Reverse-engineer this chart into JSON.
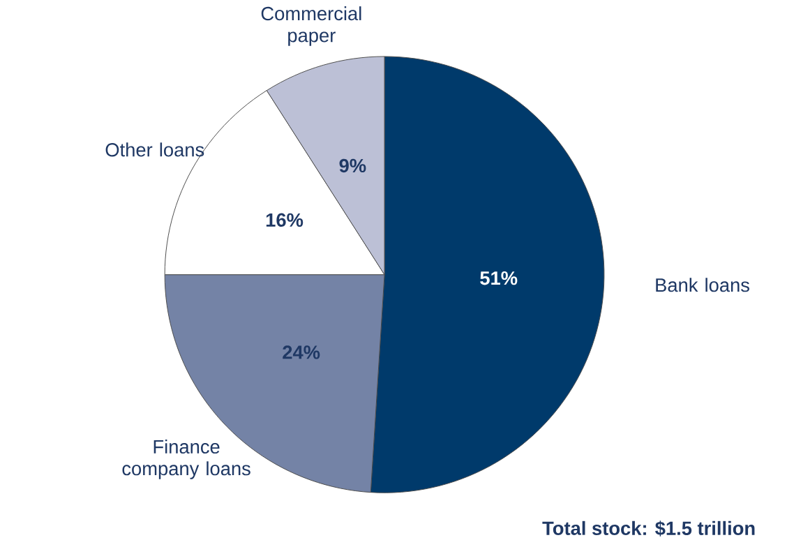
{
  "chart_data": {
    "type": "pie",
    "categories": [
      "Bank loans",
      "Finance company loans",
      "Other loans",
      "Commercial paper"
    ],
    "values": [
      51,
      24,
      16,
      9
    ],
    "colors": [
      "#003a6b",
      "#7483a6",
      "#ffffff",
      "#bcc0d6"
    ],
    "value_labels": [
      "51%",
      "24%",
      "16%",
      "9%"
    ],
    "annotations": [
      "Total stock: $1.5 trillion"
    ]
  }
}
